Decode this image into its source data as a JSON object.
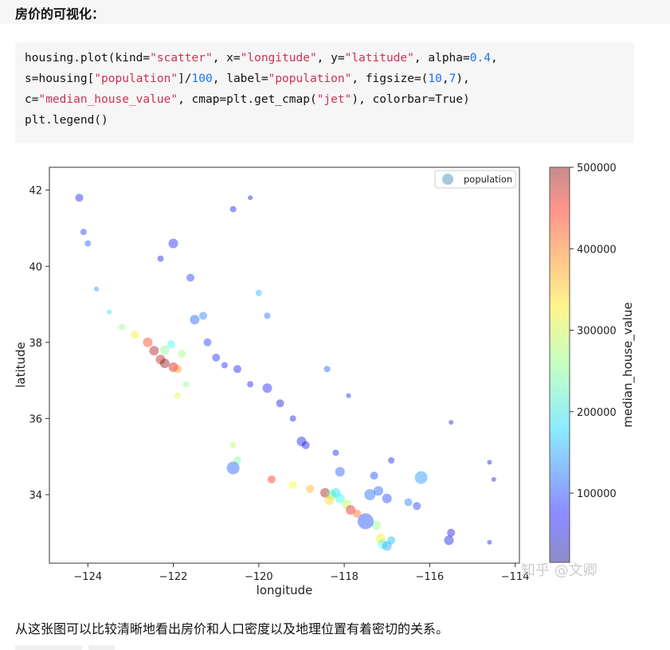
{
  "page": {
    "heading": "房价的可视化：",
    "caption": "从这张图可以比较清晰地看出房价和人口密度以及地理位置有着密切的关系。",
    "watermark": "知乎 @文卿"
  },
  "code": {
    "lines": [
      [
        {
          "t": "housing.plot(kind="
        },
        {
          "t": "\"scatter\"",
          "c": "str"
        },
        {
          "t": ", x="
        },
        {
          "t": "\"longitude\"",
          "c": "str"
        },
        {
          "t": ", y="
        },
        {
          "t": "\"latitude\"",
          "c": "str"
        },
        {
          "t": ", alpha="
        },
        {
          "t": "0.4",
          "c": "num"
        },
        {
          "t": ","
        }
      ],
      [
        {
          "t": "s=housing["
        },
        {
          "t": "\"population\"",
          "c": "str"
        },
        {
          "t": "]/"
        },
        {
          "t": "100",
          "c": "num"
        },
        {
          "t": ", label="
        },
        {
          "t": "\"population\"",
          "c": "str"
        },
        {
          "t": ", figsize=("
        },
        {
          "t": "10",
          "c": "num"
        },
        {
          "t": ","
        },
        {
          "t": "7",
          "c": "num"
        },
        {
          "t": "),"
        }
      ],
      [
        {
          "t": "c="
        },
        {
          "t": "\"median_house_value\"",
          "c": "str"
        },
        {
          "t": ", cmap=plt.get_cmap("
        },
        {
          "t": "\"jet\"",
          "c": "str"
        },
        {
          "t": "), colorbar=True)"
        }
      ],
      [
        {
          "t": "plt.legend()"
        }
      ]
    ]
  },
  "chart_data": {
    "type": "scatter",
    "title": "",
    "xlabel": "longitude",
    "ylabel": "latitude",
    "xlim": [
      -124.9,
      -113.9
    ],
    "ylim": [
      32.2,
      42.6
    ],
    "xticks": [
      -124,
      -122,
      -120,
      -118,
      -116,
      -114
    ],
    "xtick_labels": [
      "−124",
      "−122",
      "−120",
      "−118",
      "−116",
      "−114"
    ],
    "yticks": [
      34,
      36,
      38,
      40,
      42
    ],
    "ytick_labels": [
      "34",
      "36",
      "38",
      "40",
      "42"
    ],
    "colormap": "jet",
    "alpha": 0.4,
    "legend": {
      "label": "population",
      "location": "upper right"
    },
    "colorbar": {
      "label": "median_house_value",
      "min": 15000,
      "max": 500000,
      "ticks": [
        100000,
        200000,
        300000,
        400000,
        500000
      ],
      "tick_labels": [
        "100000",
        "200000",
        "300000",
        "400000",
        "500000"
      ]
    },
    "points": [
      {
        "x": -124.2,
        "y": 41.8,
        "v": 70000,
        "s": 5
      },
      {
        "x": -124.1,
        "y": 40.9,
        "v": 90000,
        "s": 4
      },
      {
        "x": -124.0,
        "y": 40.6,
        "v": 110000,
        "s": 4
      },
      {
        "x": -123.8,
        "y": 39.4,
        "v": 140000,
        "s": 3
      },
      {
        "x": -123.5,
        "y": 38.8,
        "v": 180000,
        "s": 3
      },
      {
        "x": -123.2,
        "y": 38.4,
        "v": 260000,
        "s": 4
      },
      {
        "x": -122.9,
        "y": 38.2,
        "v": 330000,
        "s": 5
      },
      {
        "x": -122.6,
        "y": 38.0,
        "v": 420000,
        "s": 6
      },
      {
        "x": -122.45,
        "y": 37.78,
        "v": 480000,
        "s": 6
      },
      {
        "x": -122.3,
        "y": 37.55,
        "v": 470000,
        "s": 6
      },
      {
        "x": -122.2,
        "y": 37.45,
        "v": 500000,
        "s": 6
      },
      {
        "x": -122.0,
        "y": 37.35,
        "v": 460000,
        "s": 6
      },
      {
        "x": -121.9,
        "y": 37.3,
        "v": 380000,
        "s": 5
      },
      {
        "x": -122.2,
        "y": 37.8,
        "v": 250000,
        "s": 6
      },
      {
        "x": -122.05,
        "y": 37.95,
        "v": 210000,
        "s": 5
      },
      {
        "x": -121.8,
        "y": 37.7,
        "v": 270000,
        "s": 5
      },
      {
        "x": -121.9,
        "y": 36.6,
        "v": 300000,
        "s": 4
      },
      {
        "x": -121.7,
        "y": 36.9,
        "v": 260000,
        "s": 4
      },
      {
        "x": -121.5,
        "y": 38.6,
        "v": 110000,
        "s": 6
      },
      {
        "x": -121.3,
        "y": 38.7,
        "v": 130000,
        "s": 5
      },
      {
        "x": -121.2,
        "y": 38.0,
        "v": 95000,
        "s": 5
      },
      {
        "x": -121.0,
        "y": 37.6,
        "v": 85000,
        "s": 5
      },
      {
        "x": -120.8,
        "y": 37.4,
        "v": 80000,
        "s": 4
      },
      {
        "x": -120.5,
        "y": 37.3,
        "v": 75000,
        "s": 5
      },
      {
        "x": -120.2,
        "y": 36.9,
        "v": 70000,
        "s": 4
      },
      {
        "x": -119.8,
        "y": 36.8,
        "v": 80000,
        "s": 6
      },
      {
        "x": -119.5,
        "y": 36.4,
        "v": 60000,
        "s": 5
      },
      {
        "x": -119.2,
        "y": 36.0,
        "v": 60000,
        "s": 4
      },
      {
        "x": -119.0,
        "y": 35.4,
        "v": 70000,
        "s": 6
      },
      {
        "x": -118.9,
        "y": 35.3,
        "v": 65000,
        "s": 5
      },
      {
        "x": -122.0,
        "y": 40.6,
        "v": 80000,
        "s": 6
      },
      {
        "x": -122.3,
        "y": 40.2,
        "v": 70000,
        "s": 4
      },
      {
        "x": -121.6,
        "y": 39.7,
        "v": 90000,
        "s": 5
      },
      {
        "x": -120.5,
        "y": 34.9,
        "v": 250000,
        "s": 5
      },
      {
        "x": -120.6,
        "y": 35.3,
        "v": 280000,
        "s": 4
      },
      {
        "x": -119.7,
        "y": 34.4,
        "v": 430000,
        "s": 5
      },
      {
        "x": -119.2,
        "y": 34.25,
        "v": 320000,
        "s": 5
      },
      {
        "x": -118.8,
        "y": 34.15,
        "v": 360000,
        "s": 5
      },
      {
        "x": -118.45,
        "y": 34.05,
        "v": 490000,
        "s": 6
      },
      {
        "x": -118.3,
        "y": 34.0,
        "v": 250000,
        "s": 6
      },
      {
        "x": -118.2,
        "y": 34.05,
        "v": 180000,
        "s": 6
      },
      {
        "x": -118.1,
        "y": 33.9,
        "v": 210000,
        "s": 6
      },
      {
        "x": -118.35,
        "y": 33.85,
        "v": 340000,
        "s": 6
      },
      {
        "x": -117.95,
        "y": 33.75,
        "v": 280000,
        "s": 6
      },
      {
        "x": -117.85,
        "y": 33.6,
        "v": 450000,
        "s": 6
      },
      {
        "x": -117.7,
        "y": 33.5,
        "v": 400000,
        "s": 5
      },
      {
        "x": -117.4,
        "y": 34.0,
        "v": 120000,
        "s": 7
      },
      {
        "x": -117.2,
        "y": 34.1,
        "v": 110000,
        "s": 6
      },
      {
        "x": -117.0,
        "y": 33.9,
        "v": 100000,
        "s": 6
      },
      {
        "x": -117.25,
        "y": 33.2,
        "v": 260000,
        "s": 6
      },
      {
        "x": -117.15,
        "y": 32.85,
        "v": 330000,
        "s": 6
      },
      {
        "x": -117.1,
        "y": 32.7,
        "v": 220000,
        "s": 6
      },
      {
        "x": -117.0,
        "y": 32.65,
        "v": 150000,
        "s": 6
      },
      {
        "x": -116.9,
        "y": 32.8,
        "v": 160000,
        "s": 5
      },
      {
        "x": -117.5,
        "y": 33.3,
        "v": 100000,
        "s": 10
      },
      {
        "x": -120.6,
        "y": 34.7,
        "v": 110000,
        "s": 8
      },
      {
        "x": -116.2,
        "y": 34.45,
        "v": 140000,
        "s": 8
      },
      {
        "x": -116.5,
        "y": 33.8,
        "v": 130000,
        "s": 5
      },
      {
        "x": -116.3,
        "y": 33.7,
        "v": 90000,
        "s": 5
      },
      {
        "x": -115.55,
        "y": 32.8,
        "v": 65000,
        "s": 6
      },
      {
        "x": -115.5,
        "y": 33.0,
        "v": 60000,
        "s": 5
      },
      {
        "x": -114.6,
        "y": 34.85,
        "v": 55000,
        "s": 3
      },
      {
        "x": -114.5,
        "y": 34.4,
        "v": 60000,
        "s": 3
      },
      {
        "x": -114.6,
        "y": 32.75,
        "v": 70000,
        "s": 3
      },
      {
        "x": -116.9,
        "y": 34.9,
        "v": 70000,
        "s": 4
      },
      {
        "x": -117.3,
        "y": 34.5,
        "v": 100000,
        "s": 5
      },
      {
        "x": -118.1,
        "y": 34.6,
        "v": 110000,
        "s": 6
      },
      {
        "x": -118.2,
        "y": 35.1,
        "v": 75000,
        "s": 4
      },
      {
        "x": -120.6,
        "y": 41.5,
        "v": 60000,
        "s": 4
      },
      {
        "x": -120.2,
        "y": 41.8,
        "v": 50000,
        "s": 3
      },
      {
        "x": -120.0,
        "y": 39.3,
        "v": 160000,
        "s": 4
      },
      {
        "x": -119.8,
        "y": 38.7,
        "v": 120000,
        "s": 4
      },
      {
        "x": -118.4,
        "y": 37.3,
        "v": 110000,
        "s": 4
      },
      {
        "x": -117.9,
        "y": 36.6,
        "v": 70000,
        "s": 3
      },
      {
        "x": -115.5,
        "y": 35.9,
        "v": 70000,
        "s": 3
      }
    ]
  }
}
